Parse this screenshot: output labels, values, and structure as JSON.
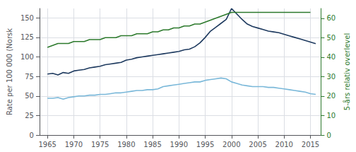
{
  "chart_data": {
    "type": "line",
    "ylabel": "Rate per 100 000 (Norsk",
    "y2label": "5-års relativ overlevel",
    "xlim": [
      1963.5,
      2017
    ],
    "xticks": [
      1965,
      1970,
      1975,
      1980,
      1985,
      1990,
      1995,
      2000,
      2005,
      2010,
      2015
    ],
    "ylim": [
      0,
      162
    ],
    "yticks": [
      0,
      25,
      50,
      75,
      100,
      125,
      150
    ],
    "y2lim": [
      0,
      65
    ],
    "y2ticks": [
      0,
      10,
      20,
      30,
      40,
      50,
      60
    ],
    "grid": true,
    "series": [
      {
        "color": "#1e3a5f",
        "x": [
          1965,
          1966,
          1967,
          1968,
          1969,
          1970,
          1971,
          1972,
          1973,
          1974,
          1975,
          1976,
          1977,
          1978,
          1979,
          1980,
          1981,
          1982,
          1983,
          1984,
          1985,
          1986,
          1987,
          1988,
          1989,
          1990,
          1991,
          1992,
          1993,
          1994,
          1995,
          1996,
          1997,
          1998,
          1999,
          2000,
          2001,
          2002,
          2003,
          2004,
          2005,
          2006,
          2007,
          2008,
          2009,
          2010,
          2011,
          2012,
          2013,
          2014,
          2015,
          2016
        ],
        "values": [
          78,
          79,
          77,
          80,
          79,
          82,
          83,
          84,
          86,
          87,
          88,
          90,
          91,
          92,
          93,
          96,
          97,
          99,
          100,
          101,
          102,
          103,
          104,
          105,
          106,
          107,
          109,
          110,
          113,
          118,
          125,
          133,
          138,
          143,
          148,
          162,
          155,
          148,
          142,
          139,
          137,
          135,
          133,
          132,
          131,
          129,
          127,
          125,
          123,
          121,
          119,
          117
        ]
      },
      {
        "color": "#7ab8d9",
        "x": [
          1965,
          1966,
          1967,
          1968,
          1969,
          1970,
          1971,
          1972,
          1973,
          1974,
          1975,
          1976,
          1977,
          1978,
          1979,
          1980,
          1981,
          1982,
          1983,
          1984,
          1985,
          1986,
          1987,
          1988,
          1989,
          1990,
          1991,
          1992,
          1993,
          1994,
          1995,
          1996,
          1997,
          1998,
          1999,
          2000,
          2001,
          2002,
          2003,
          2004,
          2005,
          2006,
          2007,
          2008,
          2009,
          2010,
          2011,
          2012,
          2013,
          2014,
          2015,
          2016
        ],
        "values": [
          47,
          47,
          48,
          46,
          48,
          49,
          50,
          50,
          51,
          51,
          52,
          52,
          53,
          54,
          54,
          55,
          56,
          57,
          57,
          58,
          58,
          59,
          62,
          63,
          64,
          65,
          66,
          67,
          68,
          68,
          70,
          71,
          72,
          73,
          72,
          68,
          66,
          64,
          63,
          62,
          62,
          62,
          61,
          61,
          60,
          59,
          58,
          57,
          56,
          55,
          53,
          52
        ]
      },
      {
        "color": "#2d7a2d",
        "axis": "y2",
        "x": [
          1965,
          1966,
          1967,
          1968,
          1969,
          1970,
          1971,
          1972,
          1973,
          1974,
          1975,
          1976,
          1977,
          1978,
          1979,
          1980,
          1981,
          1982,
          1983,
          1984,
          1985,
          1986,
          1987,
          1988,
          1989,
          1990,
          1991,
          1992,
          1993,
          1994,
          1995,
          1996,
          1997,
          1998,
          1999,
          2000,
          2001,
          2002,
          2003,
          2004,
          2005,
          2006,
          2007,
          2008,
          2009,
          2010,
          2011,
          2012,
          2013,
          2014,
          2015
        ],
        "values": [
          45,
          46,
          47,
          47,
          47,
          48,
          48,
          48,
          49,
          49,
          49,
          50,
          50,
          50,
          51,
          51,
          51,
          52,
          52,
          52,
          53,
          53,
          54,
          54,
          55,
          55,
          56,
          56,
          57,
          57,
          58,
          59,
          60,
          61,
          62,
          63,
          63,
          63,
          63,
          63,
          63,
          63,
          63,
          63,
          63,
          63,
          63,
          63,
          63,
          63,
          63
        ]
      }
    ]
  }
}
